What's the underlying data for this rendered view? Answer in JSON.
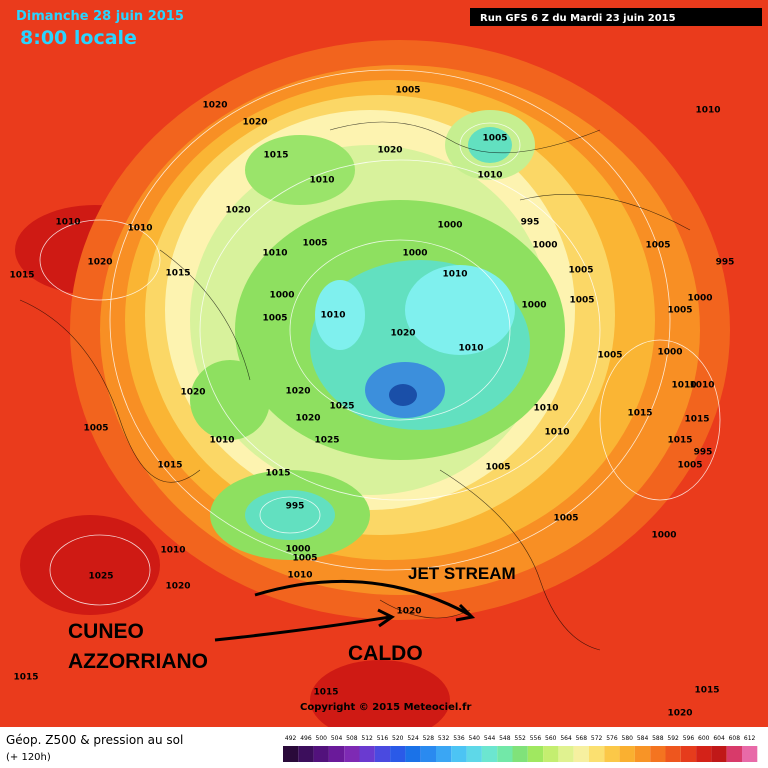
{
  "header": {
    "date": "Dimanche 28 juin 2015",
    "time": "8:00 locale",
    "run": "Run GFS 6 Z du Mardi 23 juin 2015"
  },
  "annotations": {
    "jet_stream": "JET STREAM",
    "cuneo": "CUNEO",
    "azzorriano": "AZZORRIANO",
    "caldo": "CALDO"
  },
  "pressure_labels": [
    "1020",
    "1020",
    "1005",
    "1005",
    "1010",
    "1020",
    "1010",
    "1015",
    "1010",
    "1020",
    "1000",
    "995",
    "1005",
    "1010",
    "1000",
    "1005",
    "995",
    "1010",
    "1010",
    "1020",
    "1015",
    "1015",
    "1000",
    "1005",
    "1010",
    "1000",
    "1005",
    "1000",
    "1000",
    "1005",
    "1010",
    "1020",
    "1005",
    "1010",
    "1005",
    "1000",
    "1020",
    "1020",
    "1010",
    "1010",
    "1025",
    "1010",
    "1015",
    "1005",
    "1020",
    "1010",
    "1025",
    "1010",
    "1015",
    "1015",
    "995",
    "1015",
    "1005",
    "1015",
    "1005",
    "995",
    "1005",
    "1000",
    "1000",
    "1005",
    "1010",
    "1010",
    "1025",
    "1020",
    "1020",
    "1015",
    "1015",
    "1015",
    "1020"
  ],
  "copyright": "Copyright © 2015 Meteociel.fr",
  "legend": {
    "title": "Géop. Z500 & pression au sol",
    "lead": "(+ 120h)",
    "scale": [
      492,
      496,
      500,
      504,
      508,
      512,
      516,
      520,
      524,
      528,
      532,
      536,
      540,
      544,
      548,
      552,
      556,
      560,
      564,
      568,
      572,
      576,
      580,
      584,
      588,
      592,
      596,
      600,
      604,
      608,
      612
    ]
  }
}
